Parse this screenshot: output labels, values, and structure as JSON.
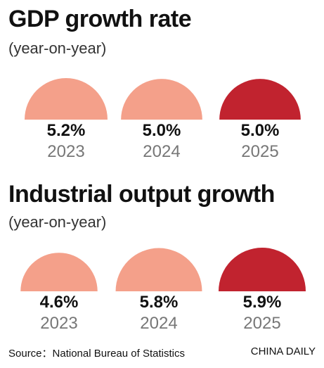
{
  "chart_data": [
    {
      "type": "semicircle",
      "title": "GDP growth rate",
      "subtitle": "(year-on-year)",
      "categories": [
        "2023",
        "2024",
        "2025"
      ],
      "values": [
        5.2,
        5.0,
        5.0
      ],
      "value_labels": [
        "5.2%",
        "5.0%",
        "5.0%"
      ],
      "colors": [
        "#f4a08a",
        "#f4a08a",
        "#c1232f"
      ]
    },
    {
      "type": "semicircle",
      "title": "Industrial output growth",
      "subtitle": "(year-on-year)",
      "categories": [
        "2023",
        "2024",
        "2025"
      ],
      "values": [
        4.6,
        5.8,
        5.9
      ],
      "value_labels": [
        "4.6%",
        "5.8%",
        "5.9%"
      ],
      "colors": [
        "#f4a08a",
        "#f4a08a",
        "#c1232f"
      ]
    }
  ],
  "footer": {
    "source": "Source：National Bureau of Statistics",
    "credit": "CHINA DAILY"
  }
}
